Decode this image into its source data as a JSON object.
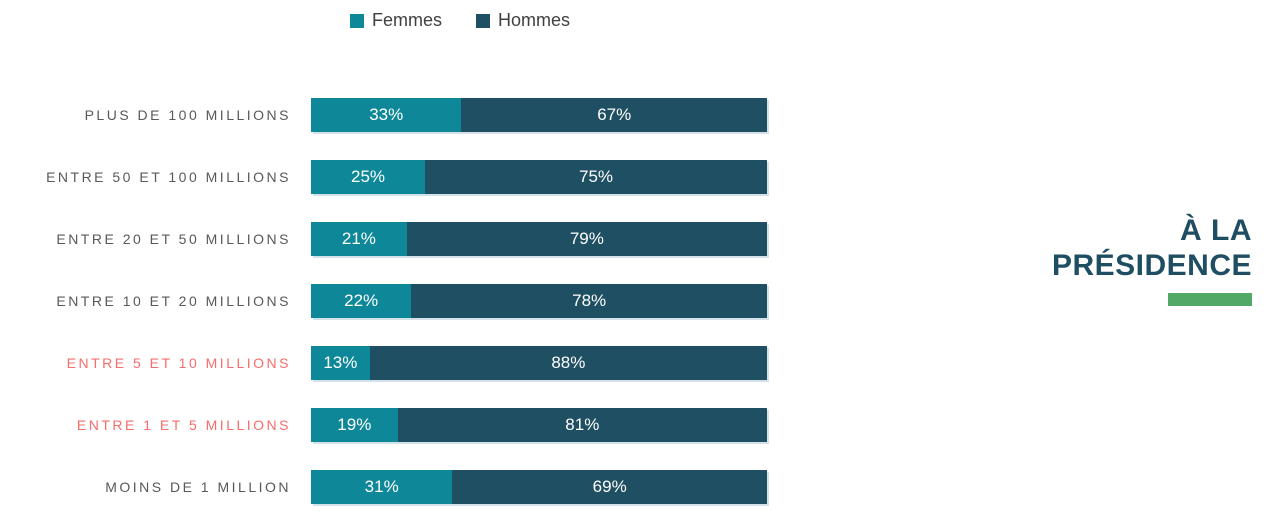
{
  "chart_data": {
    "type": "bar",
    "orientation": "horizontal-stacked",
    "title": "",
    "xlabel": "",
    "ylabel": "",
    "xlim": [
      0,
      100
    ],
    "grid": false,
    "legend_position": "top",
    "categories": [
      "PLUS DE 100 MILLIONS",
      "ENTRE 50 ET 100 MILLIONS",
      "ENTRE 20 ET 50 MILLIONS",
      "ENTRE 10 ET 20 MILLIONS",
      "ENTRE 5 ET 10 MILLIONS",
      "ENTRE 1 ET 5 MILLIONS",
      "MOINS DE 1 MILLION"
    ],
    "highlighted_categories": [
      "ENTRE 5 ET 10 MILLIONS",
      "ENTRE 1 ET 5 MILLIONS"
    ],
    "series": [
      {
        "name": "Femmes",
        "values": [
          33,
          25,
          21,
          22,
          13,
          19,
          31
        ]
      },
      {
        "name": "Hommes",
        "values": [
          67,
          75,
          79,
          78,
          88,
          81,
          69
        ]
      }
    ],
    "data_labels": [
      [
        "33%",
        "67%"
      ],
      [
        "25%",
        "75%"
      ],
      [
        "21%",
        "79%"
      ],
      [
        "22%",
        "78%"
      ],
      [
        "13%",
        "88%"
      ],
      [
        "19%",
        "81%"
      ],
      [
        "31%",
        "69%"
      ]
    ]
  },
  "legend": {
    "items": [
      {
        "label": "Femmes",
        "color": "#0E8899"
      },
      {
        "label": "Hommes",
        "color": "#1F4F63"
      }
    ]
  },
  "section": {
    "title_line1": "À LA",
    "title_line2": "PRÉSIDENCE"
  },
  "colors": {
    "femmes": "#0E8899",
    "hommes": "#1F4F63",
    "accent_green": "#52A967",
    "label_gray": "#595959",
    "label_highlight_red": "#F66D6B",
    "title_blue": "#1F4E63",
    "bar_value_text": "#ffffff"
  }
}
